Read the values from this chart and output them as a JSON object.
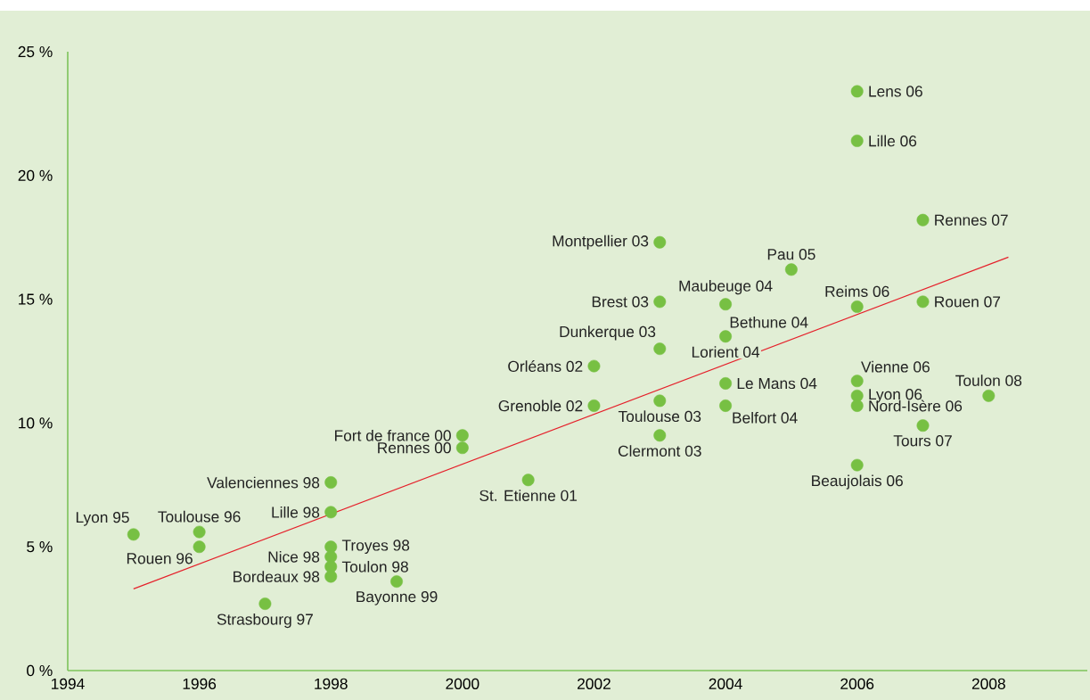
{
  "chart_data": {
    "type": "scatter",
    "marker": "circle",
    "xlim": [
      1994,
      2009.5
    ],
    "ylim": [
      0,
      25
    ],
    "xticks": [
      1994,
      1996,
      1998,
      2000,
      2002,
      2004,
      2006,
      2008
    ],
    "yticks": [
      {
        "value": 0,
        "label": "0 %"
      },
      {
        "value": 5,
        "label": "5 %"
      },
      {
        "value": 10,
        "label": "10 %"
      },
      {
        "value": 15,
        "label": "15 %"
      },
      {
        "value": 20,
        "label": "20 %"
      },
      {
        "value": 25,
        "label": "25 %"
      }
    ],
    "series": [
      {
        "color": "#77c043",
        "x": [
          1995,
          1996,
          1996,
          1997,
          1998,
          1998,
          1998,
          1998,
          1998,
          1998,
          1999,
          2000,
          2000,
          2001,
          2002,
          2002,
          2003,
          2003,
          2003,
          2003,
          2003,
          2004,
          2004,
          2004,
          2004,
          2005,
          2006,
          2006,
          2006,
          2006,
          2006,
          2006,
          2006,
          2007,
          2007,
          2007,
          2008
        ],
        "values": [
          5.5,
          5.6,
          5.0,
          2.7,
          7.6,
          6.4,
          5.0,
          4.6,
          4.2,
          3.8,
          3.6,
          9.5,
          9.0,
          7.7,
          12.3,
          10.7,
          17.3,
          14.9,
          13.0,
          10.9,
          9.5,
          14.8,
          13.5,
          11.6,
          10.7,
          16.2,
          23.4,
          21.4,
          14.7,
          11.7,
          11.1,
          10.7,
          8.3,
          18.2,
          14.9,
          9.9,
          11.1
        ]
      },
      {
        "type": "line",
        "color": "#e5202a",
        "marker": "none",
        "x": [
          1995,
          2008.3
        ],
        "values": [
          3.3,
          16.7
        ]
      }
    ],
    "annotations": [
      {
        "text": "Lyon 95",
        "x": 1995,
        "y": 5.5
      },
      {
        "text": "Toulouse 96",
        "x": 1996,
        "y": 5.6
      },
      {
        "text": "Rouen 96",
        "x": 1996,
        "y": 5.0
      },
      {
        "text": "Strasbourg 97",
        "x": 1997,
        "y": 2.7
      },
      {
        "text": "Valenciennes 98",
        "x": 1998,
        "y": 7.6
      },
      {
        "text": "Lille 98",
        "x": 1998,
        "y": 6.4
      },
      {
        "text": "Troyes 98",
        "x": 1998,
        "y": 5.0
      },
      {
        "text": "Nice 98",
        "x": 1998,
        "y": 4.6
      },
      {
        "text": "Toulon 98",
        "x": 1998,
        "y": 4.2
      },
      {
        "text": "Bordeaux 98",
        "x": 1998,
        "y": 3.8
      },
      {
        "text": "Bayonne 99",
        "x": 1999,
        "y": 3.6
      },
      {
        "text": "Fort de france 00",
        "x": 2000,
        "y": 9.5
      },
      {
        "text": "Rennes 00",
        "x": 2000,
        "y": 9.0
      },
      {
        "text": "St. Etienne 01",
        "x": 2001,
        "y": 7.7
      },
      {
        "text": "Orléans 02",
        "x": 2002,
        "y": 12.3
      },
      {
        "text": "Grenoble 02",
        "x": 2002,
        "y": 10.7
      },
      {
        "text": "Montpellier 03",
        "x": 2003,
        "y": 17.3
      },
      {
        "text": "Brest 03",
        "x": 2003,
        "y": 14.9
      },
      {
        "text": "Dunkerque 03",
        "x": 2003,
        "y": 13.0
      },
      {
        "text": "Toulouse 03",
        "x": 2003,
        "y": 10.9
      },
      {
        "text": "Clermont 03",
        "x": 2003,
        "y": 9.5
      },
      {
        "text": "Maubeuge 04",
        "x": 2004,
        "y": 14.8
      },
      {
        "text": "Bethune 04",
        "x": 2004,
        "y": 13.5
      },
      {
        "text": "Lorient 04",
        "x": 2004,
        "y": 13.5
      },
      {
        "text": "Le Mans 04",
        "x": 2004,
        "y": 11.6
      },
      {
        "text": "Belfort 04",
        "x": 2004,
        "y": 10.7
      },
      {
        "text": "Pau 05",
        "x": 2005,
        "y": 16.2
      },
      {
        "text": "Lens 06",
        "x": 2006,
        "y": 23.4
      },
      {
        "text": "Lille 06",
        "x": 2006,
        "y": 21.4
      },
      {
        "text": "Reims 06",
        "x": 2006,
        "y": 14.7
      },
      {
        "text": "Vienne 06",
        "x": 2006,
        "y": 11.7
      },
      {
        "text": "Lyon 06",
        "x": 2006,
        "y": 11.1
      },
      {
        "text": "Nord-Isère 06",
        "x": 2006,
        "y": 10.7
      },
      {
        "text": "Beaujolais 06",
        "x": 2006,
        "y": 8.3
      },
      {
        "text": "Rennes 07",
        "x": 2007,
        "y": 18.2
      },
      {
        "text": "Rouen 07",
        "x": 2007,
        "y": 14.9
      },
      {
        "text": "Tours 07",
        "x": 2007,
        "y": 9.9
      },
      {
        "text": "Toulon 08",
        "x": 2008,
        "y": 11.1
      }
    ]
  }
}
